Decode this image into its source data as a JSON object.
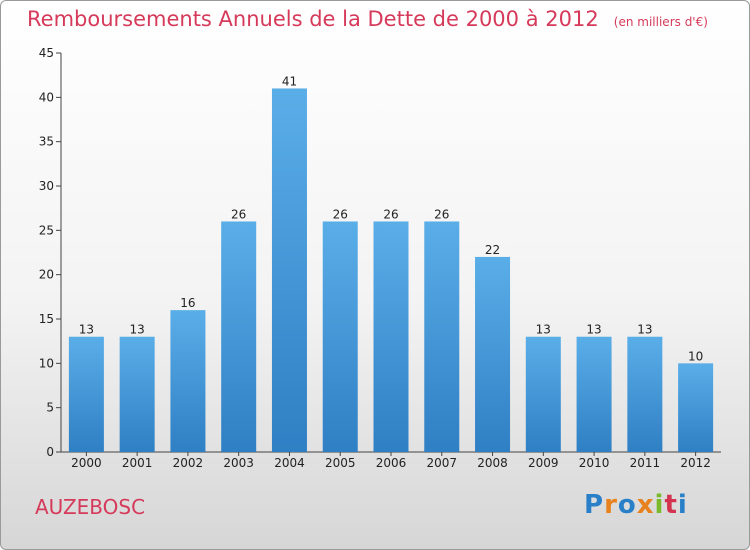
{
  "chart_data": {
    "type": "bar",
    "title": "Remboursements Annuels de la Dette de 2000 à 2012",
    "unit": "(en milliers d'€)",
    "categories": [
      "2000",
      "2001",
      "2002",
      "2003",
      "2004",
      "2005",
      "2006",
      "2007",
      "2008",
      "2009",
      "2010",
      "2011",
      "2012"
    ],
    "values": [
      13,
      13,
      16,
      26,
      41,
      26,
      26,
      26,
      22,
      13,
      13,
      13,
      10
    ],
    "ylim": [
      0,
      45
    ],
    "yticks": [
      0,
      5,
      10,
      15,
      20,
      25,
      30,
      35,
      40,
      45
    ],
    "grid": false,
    "bar_color_top": "#5aaee8",
    "bar_color_bottom": "#2f7fc4"
  },
  "commune": "AUZEBOSC",
  "logo": {
    "letters": [
      "P",
      "r",
      "o",
      "x",
      "i",
      "t",
      "i"
    ],
    "colors": [
      "#2a7fc9",
      "#e8821e",
      "#2a7fc9",
      "#e8821e",
      "#7ab929",
      "#d4334f",
      "#2a7fc9"
    ]
  },
  "colors": {
    "title": "#d63a5a",
    "commune": "#d63a5a"
  }
}
